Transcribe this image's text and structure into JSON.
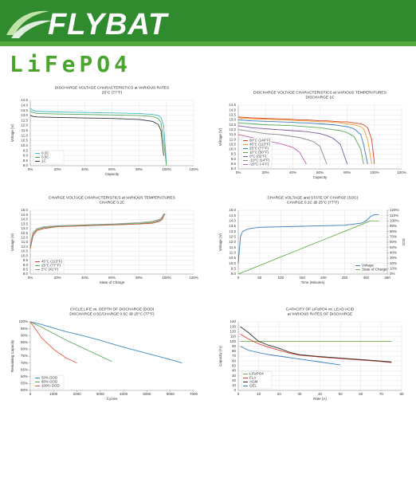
{
  "header": {
    "brand": "FLYBAT",
    "product": "LiFePO4"
  },
  "chart_data": [
    {
      "type": "line",
      "title": "DISCHARGE VOLTAGE CHARACTERISTICS at VARIOUS RATES",
      "subtitle": "25°C (77°F)",
      "x_label": "Capacity",
      "y_label": "Voltage (V)",
      "grid": true,
      "legend": "lower left",
      "x": [
        0,
        2,
        5,
        20,
        40,
        60,
        80,
        90,
        94,
        96,
        98,
        100
      ],
      "series": [
        {
          "name": "0.2C",
          "color": "#3fb8c8",
          "values": [
            13.7,
            13.5,
            13.4,
            13.35,
            13.3,
            13.25,
            13.2,
            13.1,
            13.0,
            12.8,
            12.0,
            8.2
          ]
        },
        {
          "name": "0.5C",
          "color": "#5aa85a",
          "values": [
            13.4,
            13.3,
            13.2,
            13.15,
            13.1,
            13.05,
            13.0,
            12.9,
            12.7,
            12.3,
            10.5,
            8.0
          ]
        },
        {
          "name": "1C",
          "color": "#333333",
          "values": [
            13.0,
            12.9,
            12.85,
            12.8,
            12.75,
            12.7,
            12.6,
            12.4,
            12.1,
            11.5,
            9.0,
            null
          ]
        }
      ],
      "xlim": [
        0,
        120
      ],
      "xticks": [
        {
          "value": 0,
          "label": "0%"
        },
        {
          "value": 20,
          "label": "20%"
        },
        {
          "value": 40,
          "label": "40%"
        },
        {
          "value": 60,
          "label": "60%"
        },
        {
          "value": 80,
          "label": "80%"
        },
        {
          "value": 100,
          "label": "100%"
        },
        {
          "value": 120,
          "label": "120%"
        }
      ],
      "ylim": [
        8,
        14.5
      ],
      "yticks": [
        {
          "value": 8,
          "label": "8.0"
        },
        8.5,
        {
          "value": 9,
          "label": "9.0"
        },
        9.5,
        {
          "value": 10,
          "label": "10.0"
        },
        10.5,
        {
          "value": 11,
          "label": "11.0"
        },
        11.5,
        {
          "value": 12,
          "label": "12.0"
        },
        12.5,
        {
          "value": 13,
          "label": "13.0"
        },
        13.5,
        {
          "value": 14,
          "label": "14.0"
        },
        14.5
      ]
    },
    {
      "type": "line",
      "title": "DISCHARGE VOLTAGE CHARACTERISTICS at VARIOUS TEMPERATURES",
      "subtitle": "DISCHARGE 1C",
      "x_label": "Capacity",
      "y_label": "Voltage (V)",
      "grid": true,
      "legend": "lower left",
      "x": [
        0,
        10,
        20,
        30,
        40,
        45,
        50,
        55,
        60,
        65,
        70,
        75,
        80,
        85,
        90,
        92,
        95,
        98,
        100
      ],
      "series": [
        {
          "name": "60°C (140°F)",
          "color": "#d9412b",
          "values": [
            13.3,
            13.2,
            13.15,
            13.1,
            13.05,
            13.0,
            13.0,
            12.95,
            12.9,
            12.9,
            12.85,
            12.8,
            12.8,
            12.7,
            12.6,
            12.5,
            12.2,
            11.0,
            8.5
          ]
        },
        {
          "name": "45°C (113°F)",
          "color": "#f0a030",
          "values": [
            13.2,
            13.1,
            13.05,
            13.0,
            12.95,
            12.9,
            12.9,
            12.85,
            12.8,
            12.8,
            12.75,
            12.7,
            12.6,
            12.5,
            12.3,
            12.1,
            11.0,
            8.5,
            null
          ]
        },
        {
          "name": "25°C (77°F)",
          "color": "#3a7cc0",
          "values": [
            13.0,
            12.9,
            12.85,
            12.8,
            12.75,
            12.7,
            12.7,
            12.65,
            12.6,
            12.55,
            12.5,
            12.4,
            12.3,
            12.1,
            11.5,
            10.5,
            8.5,
            null,
            null
          ]
        },
        {
          "name": "10°C (50°F)",
          "color": "#5aa85a",
          "values": [
            12.7,
            12.6,
            12.5,
            12.45,
            12.4,
            12.35,
            12.3,
            12.25,
            12.2,
            12.1,
            12.0,
            11.9,
            11.7,
            11.3,
            10.0,
            8.5,
            null,
            null,
            null
          ]
        },
        {
          "name": "0°C (32°F)",
          "color": "#7a5a9a",
          "values": [
            12.4,
            12.2,
            12.1,
            12.0,
            11.9,
            11.85,
            11.8,
            11.7,
            11.6,
            11.4,
            11.1,
            10.5,
            8.5,
            null,
            null,
            null,
            null,
            null,
            null
          ]
        },
        {
          "name": "-10°C (14°F)",
          "color": "#888888",
          "values": [
            12.0,
            11.8,
            11.6,
            11.5,
            11.3,
            11.2,
            11.0,
            10.8,
            10.3,
            8.5,
            null,
            null,
            null,
            null,
            null,
            null,
            null,
            null,
            null
          ]
        },
        {
          "name": "-20°C (-4°F)",
          "color": "#c060b0",
          "values": [
            11.5,
            11.2,
            10.9,
            10.6,
            10.2,
            9.7,
            8.5,
            null,
            null,
            null,
            null,
            null,
            null,
            null,
            null,
            null,
            null,
            null,
            null
          ]
        }
      ],
      "xlim": [
        0,
        120
      ],
      "xticks": [
        {
          "value": 0,
          "label": "0%"
        },
        {
          "value": 20,
          "label": "20%"
        },
        {
          "value": 40,
          "label": "40%"
        },
        {
          "value": 60,
          "label": "60%"
        },
        {
          "value": 80,
          "label": "80%"
        },
        {
          "value": 100,
          "label": "100%"
        },
        {
          "value": 120,
          "label": "120%"
        }
      ],
      "ylim": [
        8,
        14.5
      ],
      "yticks": [
        {
          "value": 8,
          "label": "8.0"
        },
        8.5,
        {
          "value": 9,
          "label": "9.0"
        },
        9.5,
        {
          "value": 10,
          "label": "10.0"
        },
        10.5,
        {
          "value": 11,
          "label": "11.0"
        },
        11.5,
        {
          "value": 12,
          "label": "12.0"
        },
        12.5,
        {
          "value": 13,
          "label": "13.0"
        },
        13.5,
        {
          "value": 14,
          "label": "14.0"
        },
        14.5
      ]
    },
    {
      "type": "line",
      "title": "CHARGE VOLTAGE CHARACTERISTICS at VARIOUS TEMPERATURES",
      "subtitle": "CHARGE 0.2C",
      "x_label": "State of Charge",
      "y_label": "Voltage (V)",
      "grid": true,
      "legend": "lower left",
      "x": [
        0,
        2,
        5,
        10,
        20,
        40,
        60,
        80,
        90,
        95,
        97,
        98,
        99
      ],
      "series": [
        {
          "name": "45°C (113°F)",
          "color": "#d9412b",
          "values": [
            10.8,
            12.2,
            12.8,
            13.0,
            13.2,
            13.3,
            13.4,
            13.5,
            13.6,
            13.8,
            14.0,
            14.4,
            14.6
          ]
        },
        {
          "name": "25°C (77°F)",
          "color": "#5aa85a",
          "values": [
            11.0,
            12.4,
            12.9,
            13.1,
            13.25,
            13.35,
            13.45,
            13.55,
            13.7,
            13.9,
            14.2,
            14.5,
            14.6
          ]
        },
        {
          "name": "5°C (41°F)",
          "color": "#999999",
          "values": [
            11.2,
            12.6,
            13.0,
            13.2,
            13.3,
            13.4,
            13.5,
            13.65,
            13.8,
            14.0,
            14.3,
            14.6,
            14.6
          ]
        }
      ],
      "xlim": [
        0,
        120
      ],
      "xticks": [
        {
          "value": 0,
          "label": "0%"
        },
        {
          "value": 20,
          "label": "20%"
        },
        {
          "value": 40,
          "label": "40%"
        },
        {
          "value": 60,
          "label": "60%"
        },
        {
          "value": 80,
          "label": "80%"
        },
        {
          "value": 100,
          "label": "100%"
        },
        {
          "value": 120,
          "label": "120%"
        }
      ],
      "ylim": [
        8,
        15
      ],
      "yticks": [
        {
          "value": 8,
          "label": "8.0"
        },
        8.5,
        {
          "value": 9,
          "label": "9.0"
        },
        9.5,
        {
          "value": 10,
          "label": "10.0"
        },
        10.5,
        {
          "value": 11,
          "label": "11.0"
        },
        11.5,
        {
          "value": 12,
          "label": "12.0"
        },
        12.5,
        {
          "value": 13,
          "label": "13.0"
        },
        13.5,
        {
          "value": 14,
          "label": "14.0"
        },
        14.5,
        {
          "value": 15,
          "label": "15.0"
        }
      ]
    },
    {
      "type": "line",
      "title": "CHARGE VOLTAGE and STATE OF CHARGE (SOC)",
      "subtitle": "CHARGE 0.2C @ 25°C (77°F)",
      "x_label": "Time (Minutes)",
      "y_label": "Voltage (V)",
      "y2_label": "SOC",
      "grid": true,
      "legend": "lower right",
      "x": [
        0,
        5,
        10,
        20,
        30,
        50,
        100,
        150,
        200,
        250,
        290,
        300,
        310,
        320,
        330
      ],
      "series": [
        {
          "name": "Voltage",
          "color": "#3a7cc0",
          "values": [
            10.0,
            12.5,
            13.0,
            13.2,
            13.3,
            13.4,
            13.45,
            13.5,
            13.55,
            13.6,
            13.8,
            14.0,
            14.4,
            14.6,
            14.6
          ]
        },
        {
          "name": "State of Charge",
          "color": "#6ab04c",
          "axis": "y2",
          "values": [
            0,
            1.6,
            3.2,
            6.5,
            9.7,
            16.1,
            32.3,
            48.4,
            64.5,
            80.6,
            93.5,
            96.8,
            100,
            100,
            100
          ]
        }
      ],
      "xlim": [
        0,
        350
      ],
      "xticks": [
        0,
        50,
        100,
        150,
        200,
        250,
        300,
        350
      ],
      "ylim": [
        9,
        15
      ],
      "yticks": [
        {
          "value": 9,
          "label": "9.0"
        },
        9.5,
        {
          "value": 10,
          "label": "10.0"
        },
        10.5,
        {
          "value": 11,
          "label": "11.0"
        },
        11.5,
        {
          "value": 12,
          "label": "12.0"
        },
        12.5,
        {
          "value": 13,
          "label": "13.0"
        },
        13.5,
        {
          "value": 14,
          "label": "14.0"
        },
        14.5,
        {
          "value": 15,
          "label": "15.0"
        }
      ],
      "y2lim": [
        0,
        120
      ],
      "y2ticks": [
        {
          "value": 0,
          "label": "0%"
        },
        {
          "value": 10,
          "label": "10%"
        },
        {
          "value": 20,
          "label": "20%"
        },
        {
          "value": 30,
          "label": "30%"
        },
        {
          "value": 40,
          "label": "40%"
        },
        {
          "value": 50,
          "label": "50%"
        },
        {
          "value": 60,
          "label": "60%"
        },
        {
          "value": 70,
          "label": "70%"
        },
        {
          "value": 80,
          "label": "80%"
        },
        {
          "value": 90,
          "label": "90%"
        },
        {
          "value": 100,
          "label": "100%"
        },
        {
          "value": 110,
          "label": "110%"
        },
        {
          "value": 120,
          "label": "120%"
        }
      ]
    },
    {
      "type": "line",
      "title": "CYCLE LIFE vs. DEPTH OF DISCHARGE (DOD)",
      "subtitle": "DISCHARGE 0.5C/CHARGE 0.5C @ 25°C (77°F)",
      "x_label": "Cycles",
      "y_label": "Remaining Capacity",
      "grid": false,
      "legend": "lower left",
      "x": [
        0,
        500,
        1000,
        1500,
        2000,
        3000,
        3500,
        4000,
        5000,
        6000,
        6500
      ],
      "series": [
        {
          "name": "50% DOD",
          "color": "#3a8cc0",
          "values": [
            100,
            98,
            95.5,
            93,
            91,
            86.5,
            84,
            81.5,
            77,
            72.5,
            70
          ]
        },
        {
          "name": "80% DOD",
          "color": "#5aa85a",
          "values": [
            100,
            96,
            91.5,
            87,
            83,
            75,
            71,
            null,
            null,
            null,
            null
          ]
        },
        {
          "name": "100% DOD",
          "color": "#e5553b",
          "values": [
            100,
            88,
            80,
            74,
            70,
            null,
            null,
            null,
            null,
            null,
            null
          ]
        }
      ],
      "xlim": [
        0,
        7000
      ],
      "xticks": [
        0,
        1000,
        2000,
        3000,
        4000,
        5000,
        6000,
        7000
      ],
      "ylim": [
        50,
        100
      ],
      "yticks": [
        {
          "value": 50,
          "label": "50%"
        },
        {
          "value": 55,
          "label": "55%"
        },
        {
          "value": 60,
          "label": "60%"
        },
        {
          "value": 65,
          "label": "65%"
        },
        {
          "value": 70,
          "label": "70%"
        },
        {
          "value": 75,
          "label": "75%"
        },
        {
          "value": 80,
          "label": "80%"
        },
        {
          "value": 85,
          "label": "85%"
        },
        {
          "value": 90,
          "label": "90%"
        },
        {
          "value": 95,
          "label": "95%"
        },
        {
          "value": 100,
          "label": "100%"
        }
      ]
    },
    {
      "type": "line",
      "title": "CAPACITY OF LiFePO4 vs. LEAD ACID",
      "subtitle": "at VARIOUS RATES OF DISCHARGE",
      "x_label": "Rate (A)",
      "y_label": "Capacity (%)",
      "grid": true,
      "legend": "lower left",
      "x": [
        1,
        5,
        10,
        15,
        20,
        25,
        30,
        40,
        50,
        60,
        70,
        75
      ],
      "series": [
        {
          "name": "LiFePO4",
          "color": "#6ab04c",
          "values": [
            100,
            100,
            100,
            100,
            100,
            100,
            100,
            100,
            100,
            100,
            100,
            100
          ]
        },
        {
          "name": "FLA",
          "color": "#d9412b",
          "values": [
            115,
            105,
            95,
            88,
            82,
            76,
            72,
            68,
            65,
            62,
            59,
            57
          ]
        },
        {
          "name": "AGM",
          "color": "#333333",
          "values": [
            130,
            118,
            100,
            92,
            86,
            78,
            73,
            69,
            66,
            63,
            60,
            58
          ]
        },
        {
          "name": "GEL",
          "color": "#3a7cc0",
          "values": [
            90,
            82,
            77,
            73,
            70,
            67,
            64,
            58,
            52,
            null,
            null,
            null
          ]
        }
      ],
      "xlim": [
        0,
        80
      ],
      "xticks": [
        0,
        10,
        20,
        30,
        40,
        50,
        60,
        70,
        80
      ],
      "ylim": [
        0,
        140
      ],
      "yticks": [
        0,
        10,
        20,
        30,
        40,
        50,
        60,
        70,
        80,
        90,
        100,
        110,
        120,
        130,
        140
      ]
    }
  ]
}
